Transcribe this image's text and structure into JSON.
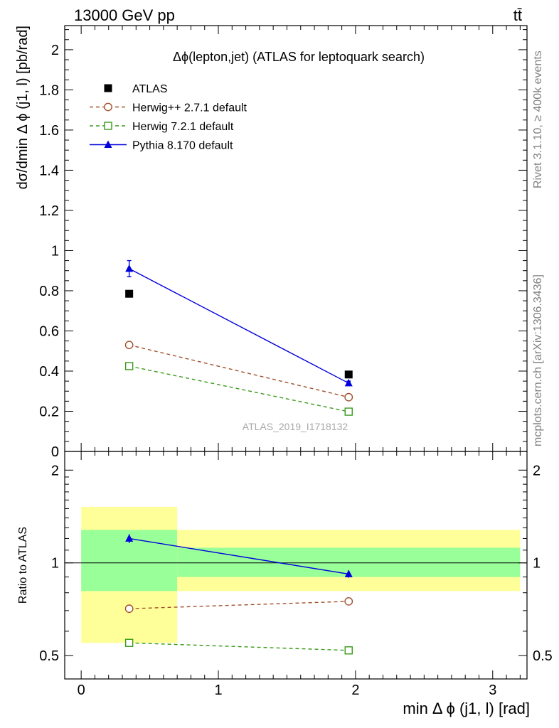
{
  "header": {
    "energy_label": "13000 GeV pp",
    "process_label": "tt̄"
  },
  "side_labels": {
    "rivet": "Rivet 3.1.10, ≥ 400k events",
    "mcplots": "mcplots.cern.ch [arXiv:1306.3436]"
  },
  "colors": {
    "atlas": "#000000",
    "herwigpp": "#a0522d",
    "herwig7": "#3a9a1a",
    "pythia": "#0000dd",
    "band_inner": "#99ff99",
    "band_outer": "#ffff99"
  },
  "chart_data": [
    {
      "type": "scatter",
      "panel": "main",
      "title": "Δϕ(lepton,jet) (ATLAS for leptoquark search)",
      "ylabel": "dσ/dmin Δ ϕ (j1, l) [pb/rad]",
      "watermark": "ATLAS_2019_I1718132",
      "xlim": [
        -0.12,
        3.25
      ],
      "ylim": [
        0,
        2.12
      ],
      "yticks": [
        0,
        0.2,
        0.4,
        0.6,
        0.8,
        1,
        1.2,
        1.4,
        1.6,
        1.8,
        2
      ],
      "ytick_labels": [
        "0",
        "0.2",
        "0.4",
        "0.6",
        "0.8",
        "1",
        "1.2",
        "1.4",
        "1.6",
        "1.8",
        "2"
      ],
      "legend_position": "top-left",
      "series": [
        {
          "name": "ATLAS",
          "marker": "square-filled",
          "line": "none",
          "x": [
            0.35,
            1.95
          ],
          "y": [
            0.785,
            0.383
          ],
          "yerr": [
            0.0,
            0.0
          ]
        },
        {
          "name": "Herwig++ 2.7.1 default",
          "marker": "circle-open",
          "line": "dashed",
          "x": [
            0.35,
            1.95
          ],
          "y": [
            0.53,
            0.27
          ]
        },
        {
          "name": "Herwig 7.2.1 default",
          "marker": "square-open",
          "line": "dashed",
          "x": [
            0.35,
            1.95
          ],
          "y": [
            0.425,
            0.198
          ]
        },
        {
          "name": "Pythia 8.170 default",
          "marker": "triangle-filled",
          "line": "solid",
          "x": [
            0.35,
            1.95
          ],
          "y": [
            0.91,
            0.34
          ],
          "yerr": [
            0.04,
            0.01
          ]
        }
      ]
    },
    {
      "type": "scatter",
      "panel": "ratio",
      "ylabel": "Ratio to ATLAS",
      "xlabel": "min Δ ϕ (j1, l) [rad]",
      "xlim": [
        -0.12,
        3.25
      ],
      "ylim": [
        0.42,
        2.3
      ],
      "log_y": true,
      "xticks": [
        0,
        1,
        2,
        3
      ],
      "xtick_labels": [
        "0",
        "1",
        "2",
        "3"
      ],
      "yticks": [
        0.5,
        1,
        2
      ],
      "ytick_labels": [
        "0.5",
        "1",
        "2"
      ],
      "bands": [
        {
          "x": [
            0.0,
            0.7
          ],
          "inner": [
            0.81,
            1.28
          ],
          "outer": [
            0.55,
            1.52
          ]
        },
        {
          "x": [
            0.7,
            3.2
          ],
          "inner": [
            0.9,
            1.12
          ],
          "outer": [
            0.81,
            1.28
          ]
        }
      ],
      "series": [
        {
          "name": "Herwig++ 2.7.1 default",
          "x": [
            0.35,
            1.95
          ],
          "y": [
            0.71,
            0.75
          ]
        },
        {
          "name": "Herwig 7.2.1 default",
          "x": [
            0.35,
            1.95
          ],
          "y": [
            0.55,
            0.52
          ]
        },
        {
          "name": "Pythia 8.170 default",
          "x": [
            0.35,
            1.95
          ],
          "y": [
            1.2,
            0.92
          ],
          "yerr": [
            0.04,
            0.025
          ]
        }
      ]
    }
  ]
}
